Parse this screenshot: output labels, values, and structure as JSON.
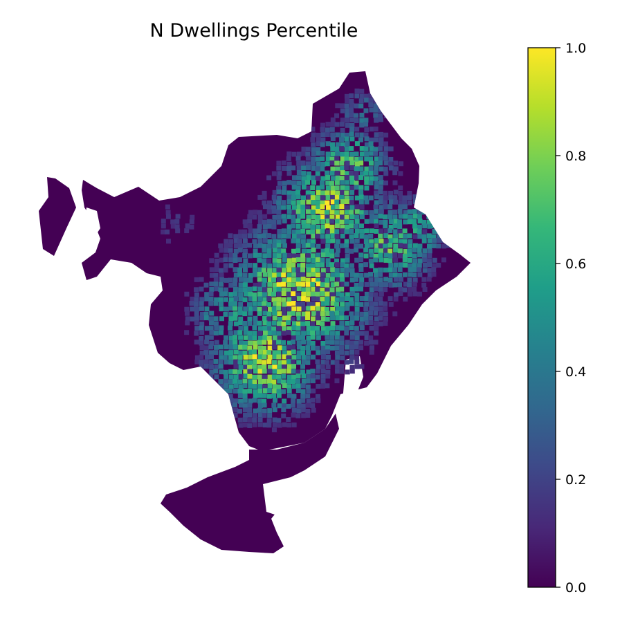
{
  "title": "N Dwellings Percentile",
  "colormap": {
    "name": "viridis",
    "stops": [
      "#440154",
      "#482878",
      "#3e4989",
      "#31688e",
      "#26828e",
      "#1f9e89",
      "#35b779",
      "#6ece58",
      "#b5de2b",
      "#fde725"
    ]
  },
  "colorbar": {
    "min": 0.0,
    "max": 1.0,
    "ticks": [
      {
        "value": 0.0,
        "label": "0.0"
      },
      {
        "value": 0.2,
        "label": "0.2"
      },
      {
        "value": 0.4,
        "label": "0.4"
      },
      {
        "value": 0.6,
        "label": "0.6"
      },
      {
        "value": 0.8,
        "label": "0.8"
      },
      {
        "value": 1.0,
        "label": "1.0"
      }
    ]
  },
  "map": {
    "legend_placement": "right",
    "axes_visible": false,
    "background": "#ffffff"
  }
}
